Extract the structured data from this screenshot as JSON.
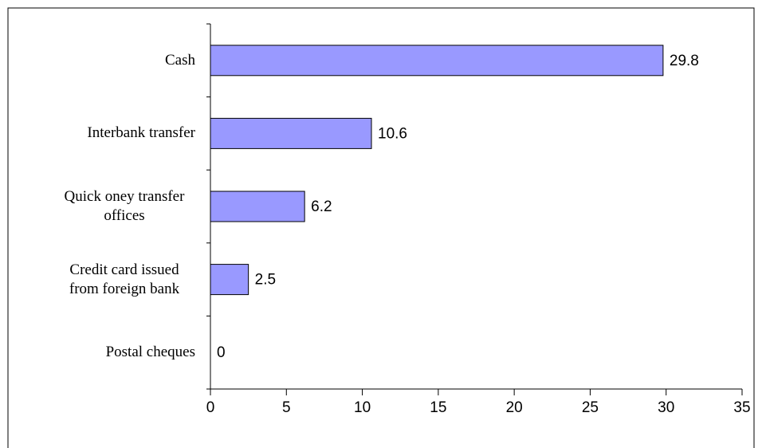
{
  "chart_data": {
    "type": "bar",
    "orientation": "horizontal",
    "categories": [
      "Cash",
      "Interbank transfer",
      "Quick oney transfer offices",
      "Credit card issued from foreign bank",
      "Postal cheques"
    ],
    "values": [
      29.8,
      10.6,
      6.2,
      2.5,
      0
    ],
    "color": "#9999ff",
    "xlim": [
      0,
      35
    ],
    "xticks": [
      0,
      5,
      10,
      15,
      20,
      25,
      30,
      35
    ],
    "grid": false
  }
}
